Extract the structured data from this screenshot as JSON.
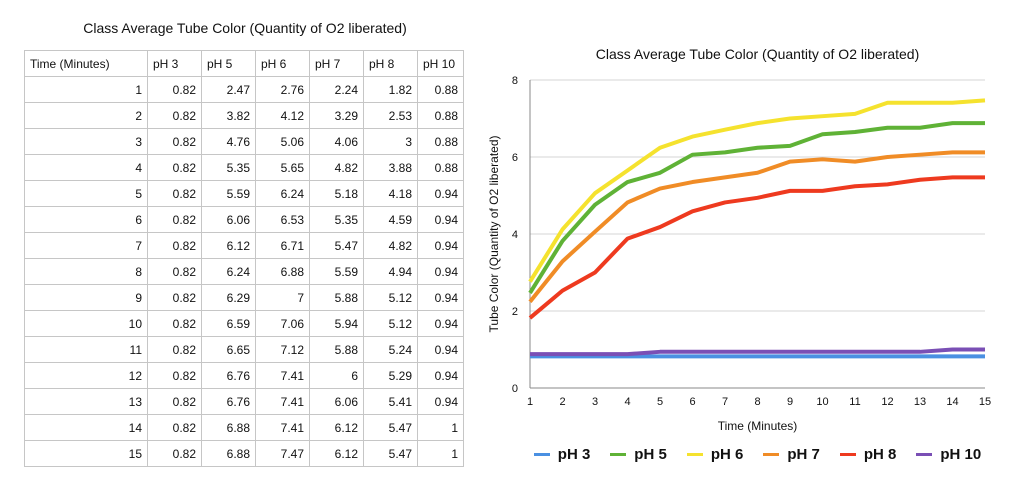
{
  "table": {
    "title": "Class Average Tube Color (Quantity of O2 liberated)",
    "headers": [
      "Time (Minutes)",
      "pH 3",
      "pH 5",
      "pH 6",
      "pH 7",
      "pH 8",
      "pH 10"
    ],
    "rows": [
      [
        "1",
        "0.82",
        "2.47",
        "2.76",
        "2.24",
        "1.82",
        "0.88"
      ],
      [
        "2",
        "0.82",
        "3.82",
        "4.12",
        "3.29",
        "2.53",
        "0.88"
      ],
      [
        "3",
        "0.82",
        "4.76",
        "5.06",
        "4.06",
        "3",
        "0.88"
      ],
      [
        "4",
        "0.82",
        "5.35",
        "5.65",
        "4.82",
        "3.88",
        "0.88"
      ],
      [
        "5",
        "0.82",
        "5.59",
        "6.24",
        "5.18",
        "4.18",
        "0.94"
      ],
      [
        "6",
        "0.82",
        "6.06",
        "6.53",
        "5.35",
        "4.59",
        "0.94"
      ],
      [
        "7",
        "0.82",
        "6.12",
        "6.71",
        "5.47",
        "4.82",
        "0.94"
      ],
      [
        "8",
        "0.82",
        "6.24",
        "6.88",
        "5.59",
        "4.94",
        "0.94"
      ],
      [
        "9",
        "0.82",
        "6.29",
        "7",
        "5.88",
        "5.12",
        "0.94"
      ],
      [
        "10",
        "0.82",
        "6.59",
        "7.06",
        "5.94",
        "5.12",
        "0.94"
      ],
      [
        "11",
        "0.82",
        "6.65",
        "7.12",
        "5.88",
        "5.24",
        "0.94"
      ],
      [
        "12",
        "0.82",
        "6.76",
        "7.41",
        "6",
        "5.29",
        "0.94"
      ],
      [
        "13",
        "0.82",
        "6.76",
        "7.41",
        "6.06",
        "5.41",
        "0.94"
      ],
      [
        "14",
        "0.82",
        "6.88",
        "7.41",
        "6.12",
        "5.47",
        "1"
      ],
      [
        "15",
        "0.82",
        "6.88",
        "7.47",
        "6.12",
        "5.47",
        "1"
      ]
    ]
  },
  "chart_data": {
    "type": "line",
    "title": "Class Average Tube Color (Quantity of O2 liberated)",
    "xlabel": "Time (Minutes)",
    "ylabel": "Tube Color (Quantity of O2 liberated)",
    "x": [
      1,
      2,
      3,
      4,
      5,
      6,
      7,
      8,
      9,
      10,
      11,
      12,
      13,
      14,
      15
    ],
    "ylim": [
      0,
      8
    ],
    "yticks": [
      0,
      2,
      4,
      6,
      8
    ],
    "grid": "horizontal",
    "legend_position": "bottom",
    "series": [
      {
        "name": "pH 3",
        "color": "#4a90e2",
        "values": [
          0.82,
          0.82,
          0.82,
          0.82,
          0.82,
          0.82,
          0.82,
          0.82,
          0.82,
          0.82,
          0.82,
          0.82,
          0.82,
          0.82,
          0.82
        ]
      },
      {
        "name": "pH 5",
        "color": "#5fb236",
        "values": [
          2.47,
          3.82,
          4.76,
          5.35,
          5.59,
          6.06,
          6.12,
          6.24,
          6.29,
          6.59,
          6.65,
          6.76,
          6.76,
          6.88,
          6.88
        ]
      },
      {
        "name": "pH 6",
        "color": "#f5e22e",
        "values": [
          2.76,
          4.12,
          5.06,
          5.65,
          6.24,
          6.53,
          6.71,
          6.88,
          7,
          7.06,
          7.12,
          7.41,
          7.41,
          7.41,
          7.47
        ]
      },
      {
        "name": "pH 7",
        "color": "#f08c26",
        "values": [
          2.24,
          3.29,
          4.06,
          4.82,
          5.18,
          5.35,
          5.47,
          5.59,
          5.88,
          5.94,
          5.88,
          6,
          6.06,
          6.12,
          6.12
        ]
      },
      {
        "name": "pH 8",
        "color": "#ee3a1f",
        "values": [
          1.82,
          2.53,
          3,
          3.88,
          4.18,
          4.59,
          4.82,
          4.94,
          5.12,
          5.12,
          5.24,
          5.29,
          5.41,
          5.47,
          5.47
        ]
      },
      {
        "name": "pH 10",
        "color": "#7a4fb5",
        "values": [
          0.88,
          0.88,
          0.88,
          0.88,
          0.94,
          0.94,
          0.94,
          0.94,
          0.94,
          0.94,
          0.94,
          0.94,
          0.94,
          1,
          1
        ]
      }
    ]
  }
}
